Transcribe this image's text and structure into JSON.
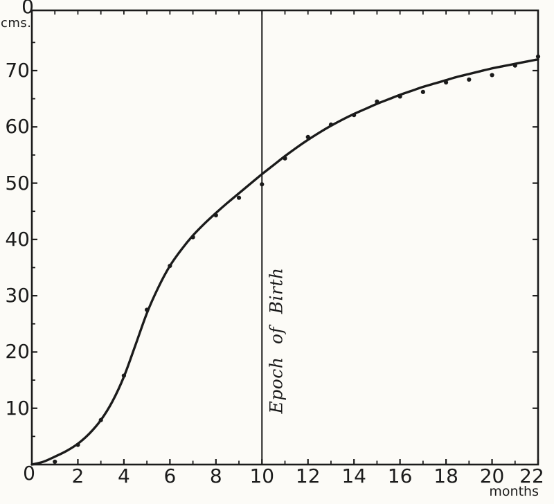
{
  "colors": {
    "ink": "#1b1b1b",
    "paper": "#fcfbf7"
  },
  "labels": {
    "y_top": "0",
    "y_unit": "cms.",
    "x_origin": "0",
    "x_unit": "months",
    "annotation": "Epoch of Birth"
  },
  "chart_data": {
    "type": "line",
    "title": "",
    "xlabel": "months",
    "ylabel": "cms.",
    "xlim": [
      0,
      22
    ],
    "ylim": [
      0,
      80.7
    ],
    "grid": false,
    "x_major_ticks": [
      2,
      4,
      6,
      8,
      10,
      12,
      14,
      16,
      18,
      20,
      22
    ],
    "x_minor_ticks": [
      1,
      3,
      5,
      7,
      9,
      11,
      13,
      15,
      17,
      19,
      21
    ],
    "y_major_ticks": [
      10,
      20,
      30,
      40,
      50,
      60,
      70
    ],
    "y_minor_ticks": [
      5,
      15,
      25,
      35,
      45,
      55,
      65,
      75
    ],
    "annotation_line": {
      "x": 10,
      "label": "Epoch of Birth"
    },
    "series": [
      {
        "name": "fitted growth curve",
        "type": "line",
        "points": [
          [
            0,
            0
          ],
          [
            0.5,
            0.5
          ],
          [
            1,
            1.4
          ],
          [
            1.5,
            2.4
          ],
          [
            2,
            3.7
          ],
          [
            2.5,
            5.5
          ],
          [
            3,
            7.9
          ],
          [
            3.5,
            11.2
          ],
          [
            4,
            15.6
          ],
          [
            4.5,
            21.2
          ],
          [
            5,
            26.9
          ],
          [
            5.5,
            31.5
          ],
          [
            6,
            35.3
          ],
          [
            6.5,
            38.2
          ],
          [
            7,
            40.7
          ],
          [
            7.5,
            42.8
          ],
          [
            8,
            44.7
          ],
          [
            8.5,
            46.5
          ],
          [
            9,
            48.2
          ],
          [
            9.5,
            49.9
          ],
          [
            10,
            51.6
          ],
          [
            10.5,
            53.2
          ],
          [
            11,
            54.8
          ],
          [
            11.5,
            56.3
          ],
          [
            12,
            57.7
          ],
          [
            12.5,
            59.0
          ],
          [
            13,
            60.2
          ],
          [
            13.5,
            61.3
          ],
          [
            14,
            62.3
          ],
          [
            14.5,
            63.2
          ],
          [
            15,
            64.1
          ],
          [
            15.5,
            64.9
          ],
          [
            16,
            65.7
          ],
          [
            16.5,
            66.4
          ],
          [
            17,
            67.1
          ],
          [
            17.5,
            67.7
          ],
          [
            18,
            68.3
          ],
          [
            18.5,
            68.9
          ],
          [
            19,
            69.4
          ],
          [
            19.5,
            69.9
          ],
          [
            20,
            70.4
          ],
          [
            20.5,
            70.8
          ],
          [
            21,
            71.2
          ],
          [
            21.5,
            71.6
          ],
          [
            22,
            72.0
          ]
        ]
      },
      {
        "name": "observed points",
        "type": "scatter",
        "points": [
          [
            1,
            0.5
          ],
          [
            2,
            3.5
          ],
          [
            3,
            7.9
          ],
          [
            4,
            15.8
          ],
          [
            5,
            27.5
          ],
          [
            6,
            35.3
          ],
          [
            7,
            40.4
          ],
          [
            8,
            44.3
          ],
          [
            9,
            47.4
          ],
          [
            10,
            49.8
          ],
          [
            11,
            54.4
          ],
          [
            12,
            58.2
          ],
          [
            13,
            60.4
          ],
          [
            14,
            62.1
          ],
          [
            15,
            64.5
          ],
          [
            16,
            65.4
          ],
          [
            17,
            66.2
          ],
          [
            18,
            67.9
          ],
          [
            19,
            68.4
          ],
          [
            20,
            69.2
          ],
          [
            21,
            70.9
          ],
          [
            22,
            72.5
          ]
        ]
      }
    ]
  }
}
